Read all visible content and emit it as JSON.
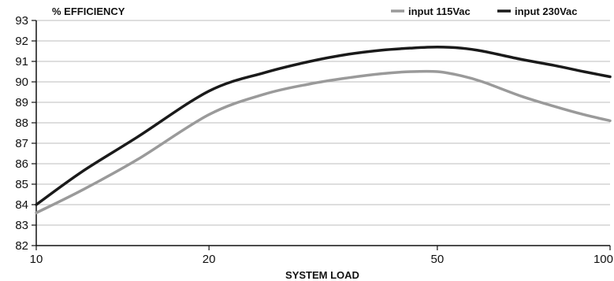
{
  "chart_data": {
    "type": "line",
    "title": "",
    "xlabel": "SYSTEM LOAD",
    "ylabel": "% EFFICIENCY",
    "x_scale": "log",
    "xlim": [
      10,
      100
    ],
    "ylim": [
      82,
      93
    ],
    "x_ticks": [
      10,
      20,
      50,
      100
    ],
    "y_ticks": [
      82,
      83,
      84,
      85,
      86,
      87,
      88,
      89,
      90,
      91,
      92,
      93
    ],
    "grid": "horizontal",
    "legend_position": "top-right",
    "series": [
      {
        "name": "input 115Vac",
        "color": "#9a9a9a",
        "x": [
          10,
          12,
          15,
          20,
          25,
          30,
          35,
          40,
          45,
          50,
          55,
          60,
          70,
          80,
          90,
          100
        ],
        "y": [
          83.6,
          84.7,
          86.2,
          88.4,
          89.4,
          89.9,
          90.2,
          90.4,
          90.5,
          90.5,
          90.3,
          90.0,
          89.3,
          88.8,
          88.4,
          88.1
        ]
      },
      {
        "name": "input 230Vac",
        "color": "#1a1a1a",
        "x": [
          10,
          12,
          15,
          20,
          25,
          30,
          35,
          40,
          45,
          50,
          55,
          60,
          70,
          80,
          90,
          100
        ],
        "y": [
          84.0,
          85.6,
          87.3,
          89.55,
          90.45,
          91.0,
          91.35,
          91.55,
          91.65,
          91.7,
          91.65,
          91.5,
          91.1,
          90.8,
          90.5,
          90.25
        ]
      }
    ]
  }
}
